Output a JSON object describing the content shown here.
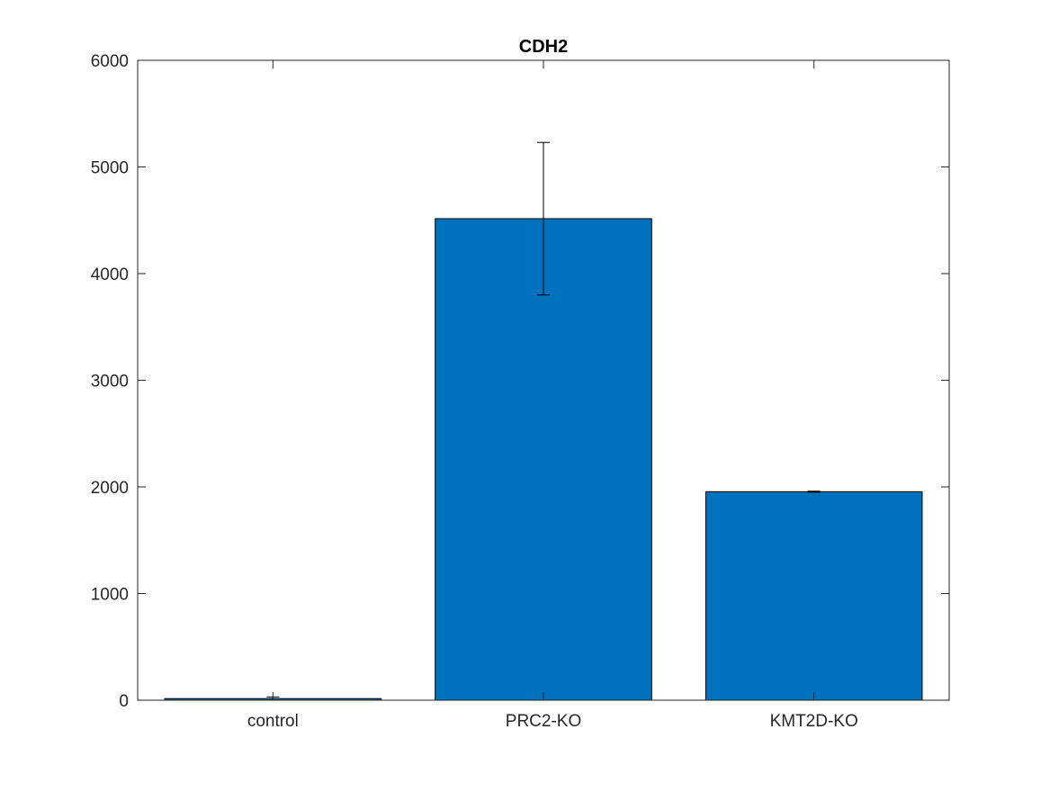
{
  "chart_data": {
    "type": "bar",
    "title": "CDH2",
    "xlabel": "",
    "ylabel": "",
    "categories": [
      "control",
      "PRC2-KO",
      "KMT2D-KO"
    ],
    "values": [
      15,
      4515,
      1955
    ],
    "error": [
      15,
      715,
      5
    ],
    "ylim": [
      0,
      6000
    ],
    "yticks": [
      0,
      1000,
      2000,
      3000,
      4000,
      5000,
      6000
    ],
    "ytick_labels": [
      "0",
      "1000",
      "2000",
      "3000",
      "4000",
      "5000",
      "6000"
    ],
    "grid": false,
    "legend": "none",
    "colors": {
      "bar": "#0072BD",
      "bar_edge": "#000000",
      "error_bar": "#000000",
      "axis": "#262626"
    }
  }
}
